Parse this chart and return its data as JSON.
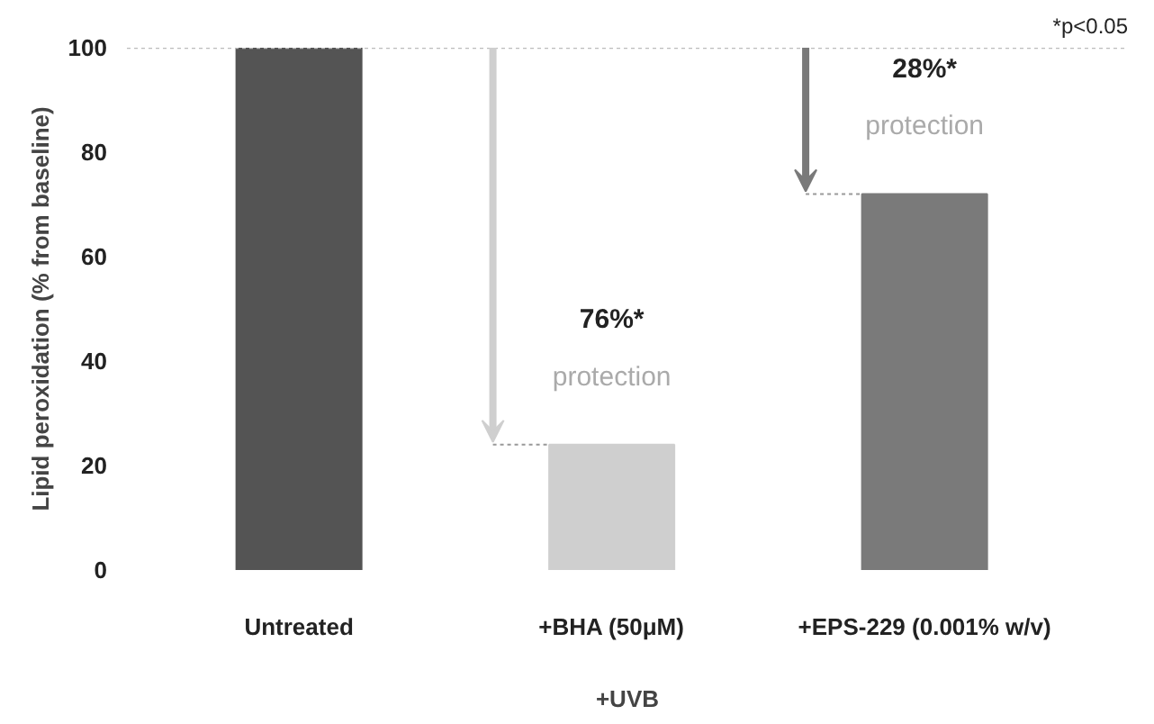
{
  "chart_data": {
    "type": "bar",
    "ylabel": "Lipid peroxidation (% from baseline)",
    "xlabel": "+UVB",
    "categories": [
      "Untreated",
      "+BHA (50μM)",
      "+EPS-229 (0.001% w/v)"
    ],
    "values": [
      100,
      24,
      72
    ],
    "colors": [
      "#545454",
      "#cfcfcf",
      "#7a7a7a"
    ],
    "ylim": [
      0,
      100
    ],
    "yticks": [
      0,
      20,
      40,
      60,
      80,
      100
    ],
    "grid": false,
    "ref_lines": [
      {
        "axis": "y",
        "value": 100,
        "label": null,
        "color": "#bbbbbb",
        "line_style": "dotted"
      }
    ],
    "annotations": [
      "76%*",
      "protection",
      "28%*",
      "protection",
      "*p<0.05"
    ]
  }
}
